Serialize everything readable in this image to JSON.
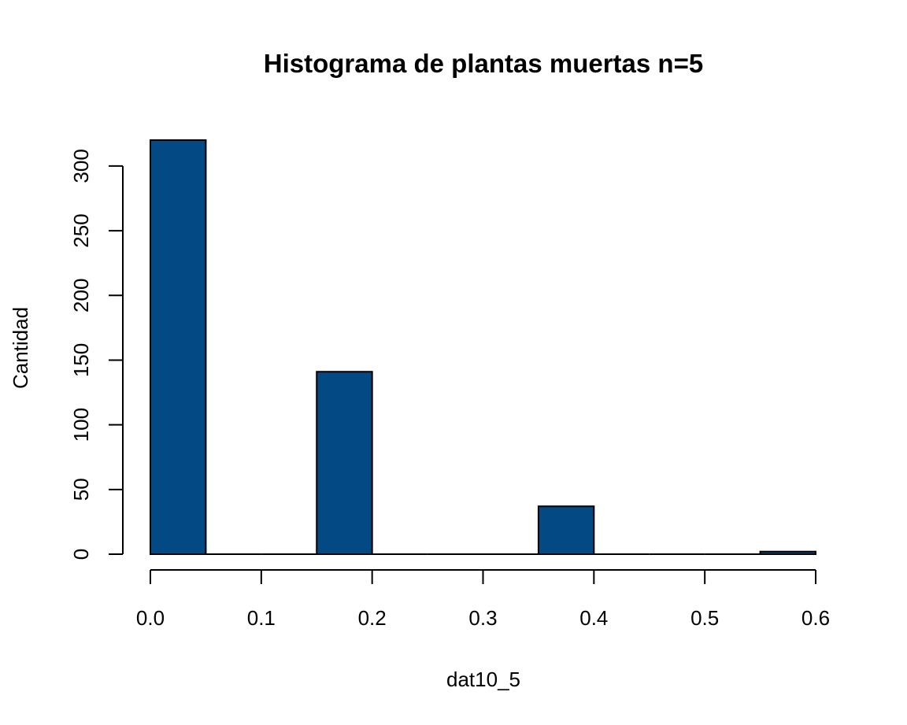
{
  "chart_data": {
    "type": "bar",
    "title": "Histograma de plantas muertas n=5",
    "xlabel": "dat10_5",
    "ylabel": "Cantidad",
    "bin_edges": [
      0.0,
      0.05,
      0.1,
      0.15,
      0.2,
      0.25,
      0.3,
      0.35,
      0.4,
      0.45,
      0.5,
      0.55,
      0.6
    ],
    "values": [
      320,
      0,
      0,
      141,
      0,
      0,
      0,
      37,
      0,
      0,
      0,
      2
    ],
    "xlim": [
      0,
      0.6
    ],
    "ylim": [
      0,
      320
    ],
    "x_ticks": [
      0.0,
      0.1,
      0.2,
      0.3,
      0.4,
      0.5,
      0.6
    ],
    "x_tick_labels": [
      "0.0",
      "0.1",
      "0.2",
      "0.3",
      "0.4",
      "0.5",
      "0.6"
    ],
    "y_ticks": [
      0,
      50,
      100,
      150,
      200,
      250,
      300
    ],
    "y_tick_labels": [
      "0",
      "50",
      "100",
      "150",
      "200",
      "250",
      "300"
    ],
    "bar_color": "#034A85",
    "grid": false
  }
}
